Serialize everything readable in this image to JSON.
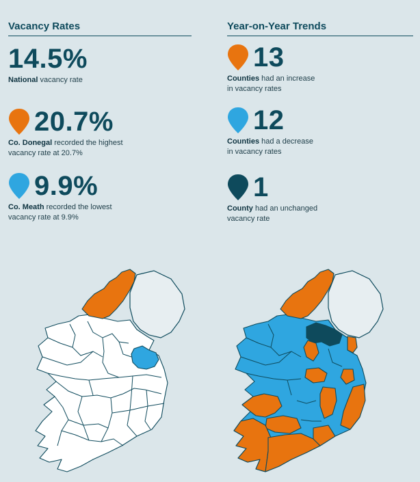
{
  "colors": {
    "orange": "#e8740f",
    "light_blue": "#2fa6e0",
    "dark_teal": "#0e4a5c",
    "white": "#ffffff",
    "ni_fill": "#e7eef1"
  },
  "vacancy": {
    "heading": "Vacancy Rates",
    "national": {
      "value": "14.5%",
      "bold": "National",
      "text": " vacancy rate"
    },
    "highest": {
      "value": "20.7%",
      "bold": "Co. Donegal",
      "text": " recorded the highest",
      "line2": "vacancy rate at 20.7%",
      "pin_color": "orange"
    },
    "lowest": {
      "value": "9.9%",
      "bold": "Co. Meath",
      "text": " recorded the lowest",
      "line2": "vacancy rate at 9.9%",
      "pin_color": "light_blue"
    }
  },
  "trends": {
    "heading": "Year-on-Year Trends",
    "increase": {
      "value": "13",
      "bold": "Counties",
      "text": " had an increase",
      "line2": "in vacancy rates",
      "pin_color": "orange"
    },
    "decrease": {
      "value": "12",
      "bold": "Counties",
      "text": " had a decrease",
      "line2": "in vacancy rates",
      "pin_color": "light_blue"
    },
    "unchanged": {
      "value": "1",
      "bold": "County",
      "text": " had an unchanged",
      "line2": "vacancy rate",
      "pin_color": "dark_teal"
    }
  }
}
